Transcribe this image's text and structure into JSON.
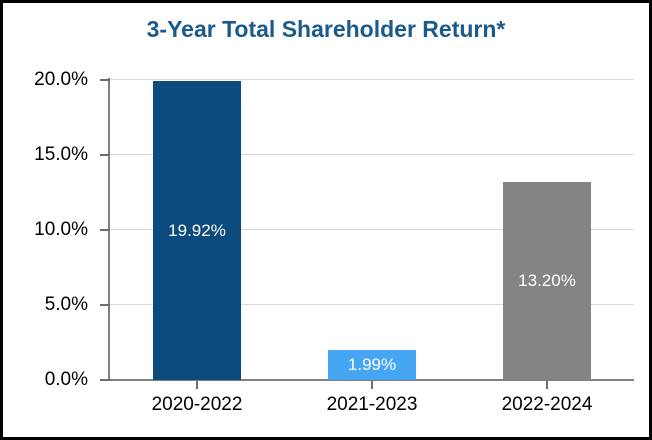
{
  "chart_data": {
    "type": "bar",
    "title": "3-Year Total Shareholder Return*",
    "categories": [
      "2020-2022",
      "2021-2023",
      "2022-2024"
    ],
    "values": [
      19.92,
      1.99,
      13.2
    ],
    "value_labels": [
      "19.92%",
      "1.99%",
      "13.20%"
    ],
    "xlabel": "",
    "ylabel": "",
    "ylim": [
      0,
      20
    ],
    "yticks": [
      {
        "value": 0,
        "label": "0.0%"
      },
      {
        "value": 5,
        "label": "5.0%"
      },
      {
        "value": 10,
        "label": "10.0%"
      },
      {
        "value": 15,
        "label": "15.0%"
      },
      {
        "value": 20,
        "label": "20.0%"
      }
    ],
    "grid": true,
    "legend": false,
    "colors": {
      "bars": [
        "#0C4B7D",
        "#47A6F3",
        "#848484"
      ],
      "title": "#1A5A8C",
      "axis": "#808080",
      "tick": "#6E6E6E",
      "gridline": "#D9D9D9",
      "data_label": "#FFFFFF",
      "tick_label": "#000000",
      "background": "#FFFFFF",
      "frame_border": "#000000"
    }
  }
}
